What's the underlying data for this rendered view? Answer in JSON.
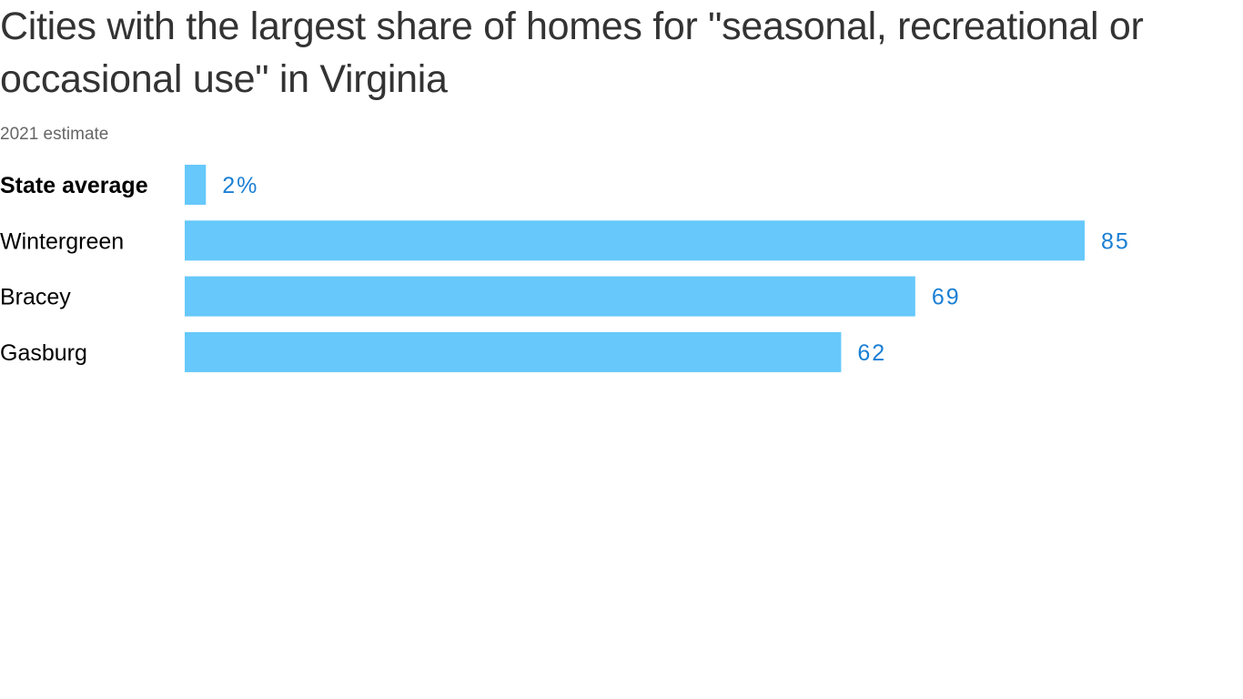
{
  "chart_data": {
    "type": "bar",
    "orientation": "horizontal",
    "title": "Cities with the largest share of homes for \"seasonal, recreational or occasional use\" in Virginia",
    "subtitle": "2021 estimate",
    "categories": [
      "State average",
      "Wintergreen",
      "Bracey",
      "Gasburg"
    ],
    "values": [
      2,
      85,
      69,
      62
    ],
    "value_labels": [
      "2%",
      "85",
      "69",
      "62"
    ],
    "highlight_category": "State average",
    "unit": "%",
    "xlim": [
      0,
      85
    ],
    "grid": false,
    "legend": "none",
    "bar_color": "#66c8fb",
    "value_label_color": "#1a7fd4"
  }
}
